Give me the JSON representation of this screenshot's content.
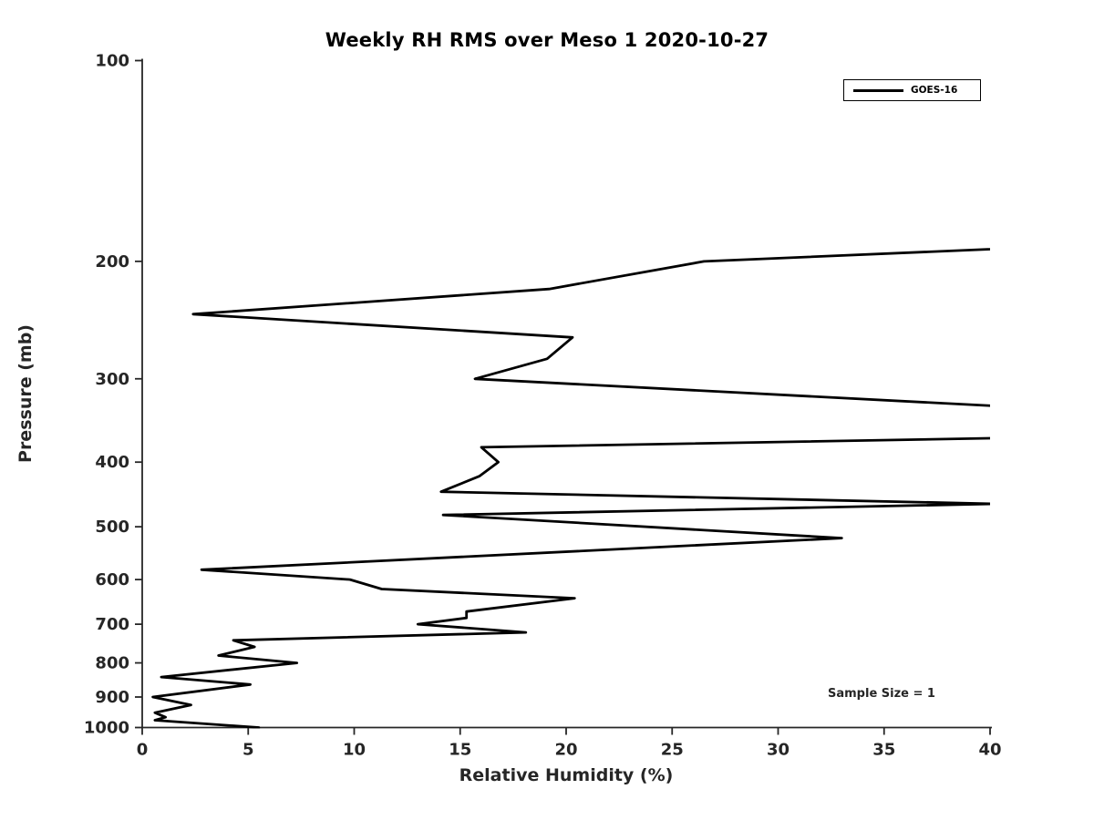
{
  "chart_data": {
    "type": "line",
    "title": "Weekly RH RMS over Meso 1 2020-10-27",
    "xlabel": "Relative Humidity (%)",
    "ylabel": "Pressure (mb)",
    "xlim": [
      0,
      40
    ],
    "ylim": [
      1000,
      100
    ],
    "yscale": "log",
    "grid": false,
    "x_ticks": [
      0,
      5,
      10,
      15,
      20,
      25,
      30,
      35,
      40
    ],
    "y_ticks": [
      100,
      200,
      300,
      400,
      500,
      600,
      700,
      800,
      900,
      1000
    ],
    "legend_position": "upper right",
    "annotation": {
      "text": "Sample Size = 1",
      "rh": 34.9,
      "pressure": 895
    },
    "line_color": "#000000",
    "series": [
      {
        "name": "GOES-16",
        "color": "#000000",
        "points_note": "pairs of [relative_humidity_pct, pressure_mb], top of atmosphere first; values above 40 are clipped by the axis limit",
        "points": [
          [
            43.0,
            190
          ],
          [
            26.5,
            200
          ],
          [
            19.2,
            220
          ],
          [
            2.4,
            240
          ],
          [
            20.3,
            260
          ],
          [
            19.1,
            280
          ],
          [
            15.7,
            300
          ],
          [
            43.0,
            333
          ],
          [
            43.0,
            367
          ],
          [
            16.0,
            380
          ],
          [
            16.8,
            400
          ],
          [
            15.9,
            420
          ],
          [
            14.1,
            443
          ],
          [
            40.3,
            462
          ],
          [
            14.2,
            480
          ],
          [
            33.0,
            520
          ],
          [
            2.8,
            580
          ],
          [
            9.8,
            600
          ],
          [
            11.3,
            620
          ],
          [
            20.4,
            640
          ],
          [
            15.3,
            670
          ],
          [
            15.3,
            685
          ],
          [
            13.0,
            700
          ],
          [
            18.1,
            720
          ],
          [
            4.3,
            740
          ],
          [
            5.3,
            757
          ],
          [
            3.6,
            780
          ],
          [
            7.3,
            800
          ],
          [
            0.9,
            840
          ],
          [
            5.1,
            862
          ],
          [
            0.5,
            900
          ],
          [
            2.3,
            925
          ],
          [
            0.6,
            950
          ],
          [
            1.1,
            965
          ],
          [
            0.6,
            975
          ],
          [
            5.5,
            1000
          ]
        ]
      }
    ]
  }
}
